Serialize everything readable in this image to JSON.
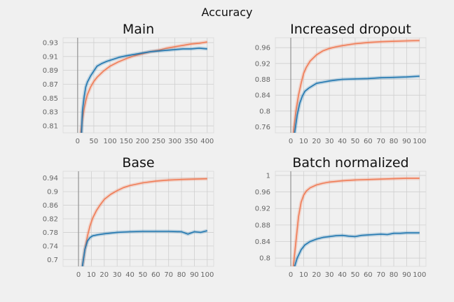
{
  "title": "Accuracy",
  "colors": {
    "train": "#f07c56",
    "val": "#2177b0",
    "grid": "#cfcfcf",
    "background": "#f0f0f0"
  },
  "chart_data": [
    {
      "type": "line",
      "title": "Main",
      "xlim": [
        -45,
        420
      ],
      "ylim": [
        0.8,
        0.937
      ],
      "xticks": [
        0,
        50,
        100,
        150,
        200,
        250,
        300,
        350,
        400
      ],
      "yticks": [
        0.81,
        0.83,
        0.85,
        0.87,
        0.89,
        0.91,
        0.93
      ],
      "grid": true,
      "vline_x": 0,
      "series": [
        {
          "role": "train",
          "color": "#f07c56",
          "x": [
            10,
            15,
            20,
            25,
            30,
            40,
            50,
            60,
            80,
            100,
            125,
            150,
            175,
            200,
            225,
            250,
            275,
            300,
            325,
            350,
            375,
            400
          ],
          "y": [
            0.8,
            0.82,
            0.835,
            0.846,
            0.855,
            0.866,
            0.874,
            0.88,
            0.889,
            0.896,
            0.902,
            0.907,
            0.911,
            0.914,
            0.917,
            0.919,
            0.922,
            0.924,
            0.926,
            0.928,
            0.929,
            0.931
          ]
        },
        {
          "role": "val",
          "color": "#2177b0",
          "x": [
            12,
            15,
            20,
            25,
            30,
            40,
            50,
            60,
            75,
            90,
            110,
            130,
            150,
            175,
            200,
            225,
            250,
            275,
            300,
            325,
            350,
            375,
            400
          ],
          "y": [
            0.8,
            0.832,
            0.852,
            0.866,
            0.873,
            0.882,
            0.889,
            0.896,
            0.9,
            0.903,
            0.906,
            0.909,
            0.911,
            0.913,
            0.915,
            0.917,
            0.918,
            0.919,
            0.92,
            0.921,
            0.921,
            0.922,
            0.921
          ]
        }
      ]
    },
    {
      "type": "line",
      "title": "Increased dropout",
      "xlim": [
        -12,
        105
      ],
      "ylim": [
        0.745,
        0.985
      ],
      "xticks": [
        0,
        10,
        20,
        30,
        40,
        50,
        60,
        70,
        80,
        90,
        100
      ],
      "yticks": [
        0.76,
        0.8,
        0.84,
        0.88,
        0.92,
        0.96
      ],
      "grid": true,
      "vline_x": 0,
      "series": [
        {
          "role": "train",
          "color": "#f07c56",
          "x": [
            2,
            4,
            6,
            8,
            10,
            12,
            15,
            20,
            25,
            30,
            35,
            40,
            50,
            60,
            70,
            80,
            90,
            100
          ],
          "y": [
            0.745,
            0.8,
            0.84,
            0.87,
            0.895,
            0.91,
            0.926,
            0.942,
            0.952,
            0.958,
            0.962,
            0.965,
            0.97,
            0.973,
            0.975,
            0.976,
            0.977,
            0.978
          ]
        },
        {
          "role": "val",
          "color": "#2177b0",
          "x": [
            3,
            5,
            7,
            9,
            11,
            14,
            17,
            20,
            25,
            30,
            35,
            40,
            50,
            60,
            70,
            80,
            90,
            100
          ],
          "y": [
            0.745,
            0.79,
            0.82,
            0.838,
            0.85,
            0.858,
            0.864,
            0.87,
            0.873,
            0.876,
            0.878,
            0.88,
            0.881,
            0.882,
            0.884,
            0.885,
            0.886,
            0.888
          ]
        }
      ]
    },
    {
      "type": "line",
      "title": "Base",
      "xlim": [
        -12,
        105
      ],
      "ylim": [
        0.68,
        0.96
      ],
      "xticks": [
        0,
        10,
        20,
        30,
        40,
        50,
        60,
        70,
        80,
        90,
        100
      ],
      "yticks": [
        0.7,
        0.74,
        0.78,
        0.82,
        0.86,
        0.9,
        0.94
      ],
      "grid": true,
      "vline_x": 0,
      "series": [
        {
          "role": "train",
          "color": "#f07c56",
          "x": [
            3,
            5,
            7,
            9,
            11,
            14,
            17,
            20,
            25,
            30,
            35,
            40,
            50,
            60,
            70,
            80,
            90,
            100
          ],
          "y": [
            0.68,
            0.73,
            0.77,
            0.8,
            0.822,
            0.845,
            0.862,
            0.877,
            0.892,
            0.903,
            0.912,
            0.918,
            0.926,
            0.931,
            0.934,
            0.936,
            0.937,
            0.938
          ]
        },
        {
          "role": "val",
          "color": "#2177b0",
          "x": [
            3,
            5,
            7,
            9,
            11,
            15,
            20,
            25,
            30,
            40,
            50,
            60,
            70,
            80,
            85,
            90,
            95,
            100
          ],
          "y": [
            0.68,
            0.73,
            0.755,
            0.765,
            0.77,
            0.773,
            0.776,
            0.778,
            0.78,
            0.782,
            0.783,
            0.783,
            0.783,
            0.782,
            0.775,
            0.782,
            0.78,
            0.785
          ]
        }
      ]
    },
    {
      "type": "line",
      "title": "Batch normalized",
      "xlim": [
        -12,
        105
      ],
      "ylim": [
        0.78,
        1.01
      ],
      "xticks": [
        0,
        10,
        20,
        30,
        40,
        50,
        60,
        70,
        80,
        90,
        100
      ],
      "yticks": [
        0.8,
        0.84,
        0.88,
        0.92,
        0.96,
        1
      ],
      "grid": true,
      "vline_x": 0,
      "series": [
        {
          "role": "train",
          "color": "#f07c56",
          "x": [
            2,
            4,
            6,
            8,
            10,
            12,
            15,
            20,
            25,
            30,
            40,
            50,
            60,
            70,
            80,
            90,
            100
          ],
          "y": [
            0.78,
            0.84,
            0.9,
            0.935,
            0.952,
            0.962,
            0.97,
            0.977,
            0.981,
            0.984,
            0.987,
            0.989,
            0.99,
            0.991,
            0.992,
            0.993,
            0.993
          ]
        },
        {
          "role": "val",
          "color": "#2177b0",
          "x": [
            3,
            5,
            8,
            11,
            15,
            20,
            25,
            30,
            35,
            40,
            45,
            50,
            55,
            60,
            65,
            70,
            75,
            80,
            85,
            90,
            95,
            100
          ],
          "y": [
            0.78,
            0.8,
            0.82,
            0.832,
            0.84,
            0.846,
            0.85,
            0.852,
            0.854,
            0.855,
            0.853,
            0.852,
            0.855,
            0.856,
            0.857,
            0.858,
            0.857,
            0.86,
            0.86,
            0.861,
            0.861,
            0.861
          ]
        }
      ]
    }
  ]
}
